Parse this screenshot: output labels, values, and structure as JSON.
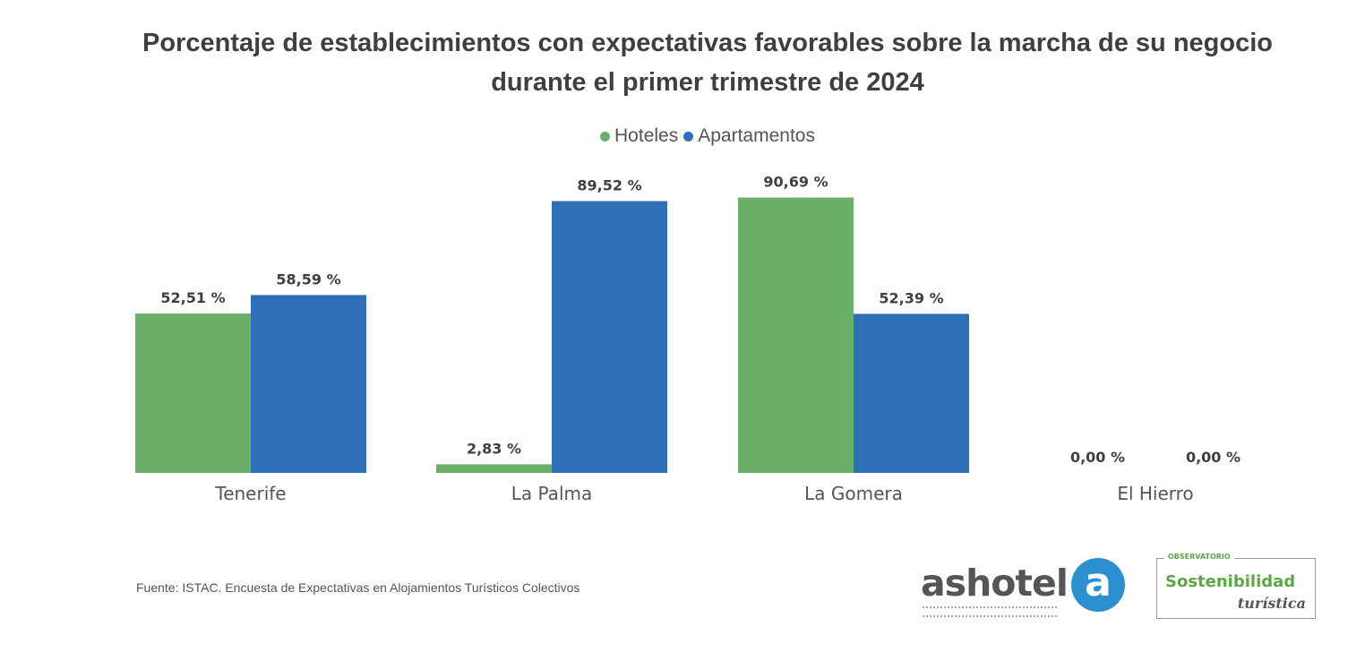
{
  "chart_data": {
    "type": "bar",
    "title": "Porcentaje de establecimientos con expectativas favorables sobre la marcha de su negocio durante el primer trimestre de 2024",
    "title_lines": [
      "Porcentaje de establecimientos con expectativas favorables sobre la marcha de su negocio",
      "durante el primer trimestre de 2024"
    ],
    "categories": [
      "Tenerife",
      "La Palma",
      "La Gomera",
      "El Hierro"
    ],
    "series": [
      {
        "name": "Hoteles",
        "color": "#6aaf6a",
        "values": [
          52.51,
          2.83,
          90.69,
          0.0
        ],
        "labels": [
          "52,51 %",
          "2,83 %",
          "90,69 %",
          "0,00 %"
        ]
      },
      {
        "name": "Apartamentos",
        "color": "#2f6fb7",
        "values": [
          58.59,
          89.52,
          52.39,
          0.0
        ],
        "labels": [
          "58,59 %",
          "89,52 %",
          "52,39 %",
          "0,00 %"
        ]
      }
    ],
    "ylim": [
      0,
      100
    ],
    "xlabel": "",
    "ylabel": "",
    "grid": false,
    "legend_position": "top-center"
  },
  "source": "Fuente: ISTAC. Encuesta de Expectativas en Alojamientos Turísticos Colectivos",
  "logos": {
    "ashotel_word": "ashotel",
    "ashotel_mark": "a",
    "observatorio_top": "OBSERVATORIO",
    "observatorio_main": "Sostenibilidad",
    "observatorio_sub": "turística"
  }
}
